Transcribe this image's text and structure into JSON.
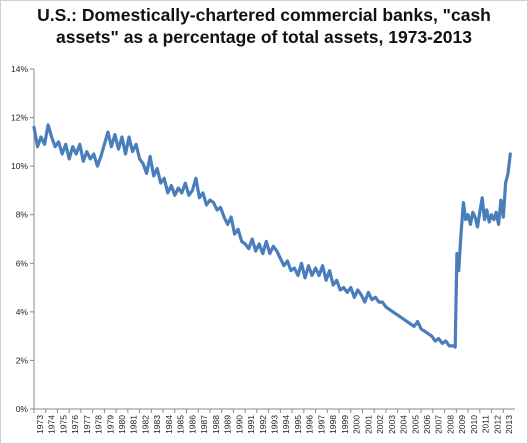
{
  "chart_data": {
    "type": "line",
    "title": "U.S.: Domestically-chartered commercial banks, \"cash assets\" as a percentage of total assets, 1973-2013",
    "xlabel": "",
    "ylabel": "",
    "ylim": [
      0,
      14
    ],
    "xlim": [
      1973,
      2014
    ],
    "y_ticks": [
      "0%",
      "2%",
      "4%",
      "6%",
      "8%",
      "10%",
      "12%",
      "14%"
    ],
    "x_ticks": [
      "1973",
      "1974",
      "1975",
      "1976",
      "1977",
      "1978",
      "1979",
      "1980",
      "1981",
      "1982",
      "1983",
      "1984",
      "1985",
      "1986",
      "1987",
      "1988",
      "1989",
      "1990",
      "1991",
      "1992",
      "1993",
      "1994",
      "1995",
      "1996",
      "1997",
      "1998",
      "1999",
      "2000",
      "2001",
      "2002",
      "2003",
      "2004",
      "2005",
      "2006",
      "2007",
      "2008",
      "2009",
      "2010",
      "2011",
      "2012",
      "2013"
    ],
    "grid": false,
    "legend": "none",
    "series_color": "#4a7ebb",
    "series": [
      {
        "x": [
          1973.0,
          1973.3,
          1973.6,
          1973.9,
          1974.2,
          1974.5,
          1974.8,
          1975.1,
          1975.4,
          1975.7,
          1976.0,
          1976.3,
          1976.6,
          1976.9,
          1977.2,
          1977.5,
          1977.8,
          1978.1,
          1978.4,
          1978.7,
          1979.0,
          1979.3,
          1979.6,
          1979.9,
          1980.2,
          1980.5,
          1980.8,
          1981.1,
          1981.4,
          1981.7,
          1982.0,
          1982.3,
          1982.6,
          1982.9,
          1983.2,
          1983.5,
          1983.8,
          1984.1,
          1984.4,
          1984.7,
          1985.0,
          1985.3,
          1985.6,
          1985.9,
          1986.2,
          1986.5,
          1986.8,
          1987.1,
          1987.4,
          1987.7,
          1988.0,
          1988.3,
          1988.6,
          1988.9,
          1989.2,
          1989.5,
          1989.8,
          1990.1,
          1990.4,
          1990.7,
          1991.0,
          1991.3,
          1991.6,
          1991.9,
          1992.2,
          1992.5,
          1992.8,
          1993.1,
          1993.4,
          1993.7,
          1994.0,
          1994.3,
          1994.6,
          1994.9,
          1995.2,
          1995.5,
          1995.8,
          1996.1,
          1996.4,
          1996.7,
          1997.0,
          1997.3,
          1997.6,
          1997.9,
          1998.2,
          1998.5,
          1998.8,
          1999.1,
          1999.4,
          1999.7,
          2000.0,
          2000.3,
          2000.6,
          2000.9,
          2001.2,
          2001.5,
          2001.8,
          2002.1,
          2002.4,
          2002.7,
          2003.0,
          2003.3,
          2003.6,
          2003.9,
          2004.2,
          2004.5,
          2004.8,
          2005.1,
          2005.4,
          2005.7,
          2006.0,
          2006.3,
          2006.6,
          2006.9,
          2007.2,
          2007.5,
          2007.8,
          2008.1,
          2008.4,
          2008.6,
          2008.75,
          2008.9,
          2009.05,
          2009.2,
          2009.4,
          2009.6,
          2009.8,
          2010.0,
          2010.2,
          2010.4,
          2010.6,
          2010.8,
          2011.0,
          2011.2,
          2011.4,
          2011.6,
          2011.8,
          2012.0,
          2012.2,
          2012.4,
          2012.6,
          2012.8,
          2013.0,
          2013.2,
          2013.4,
          2013.6
        ],
        "values": [
          11.6,
          10.8,
          11.2,
          10.9,
          11.7,
          11.2,
          10.8,
          11.0,
          10.5,
          10.9,
          10.3,
          10.8,
          10.5,
          10.9,
          10.2,
          10.6,
          10.3,
          10.5,
          10.0,
          10.4,
          10.9,
          11.4,
          10.8,
          11.3,
          10.7,
          11.2,
          10.5,
          11.2,
          10.6,
          10.9,
          10.3,
          10.1,
          9.7,
          10.4,
          9.6,
          9.9,
          9.3,
          9.5,
          8.9,
          9.2,
          8.8,
          9.1,
          8.9,
          9.3,
          8.8,
          9.0,
          9.5,
          8.7,
          8.9,
          8.4,
          8.6,
          8.5,
          8.2,
          8.3,
          7.9,
          7.6,
          7.9,
          7.2,
          7.4,
          6.9,
          6.8,
          6.6,
          7.0,
          6.5,
          6.8,
          6.4,
          6.9,
          6.4,
          6.7,
          6.5,
          6.2,
          5.9,
          6.1,
          5.7,
          5.8,
          5.5,
          6.0,
          5.4,
          5.9,
          5.5,
          5.8,
          5.5,
          5.9,
          5.3,
          5.7,
          5.1,
          5.3,
          4.9,
          5.0,
          4.8,
          5.0,
          4.6,
          4.9,
          4.7,
          4.4,
          4.8,
          4.5,
          4.6,
          4.4,
          4.4,
          4.2,
          4.1,
          4.0,
          3.9,
          3.8,
          3.7,
          3.6,
          3.5,
          3.4,
          3.6,
          3.3,
          3.2,
          3.1,
          3.0,
          2.8,
          2.9,
          2.7,
          2.8,
          2.6,
          2.6,
          2.6,
          2.55,
          6.4,
          5.7,
          7.2,
          8.5,
          7.8,
          8.0,
          7.6,
          8.1,
          7.9,
          7.5,
          8.1,
          8.7,
          7.8,
          8.2,
          7.7,
          8.0,
          7.8,
          8.1,
          7.6,
          8.6,
          7.9,
          9.3,
          9.7,
          10.5
        ]
      }
    ]
  }
}
